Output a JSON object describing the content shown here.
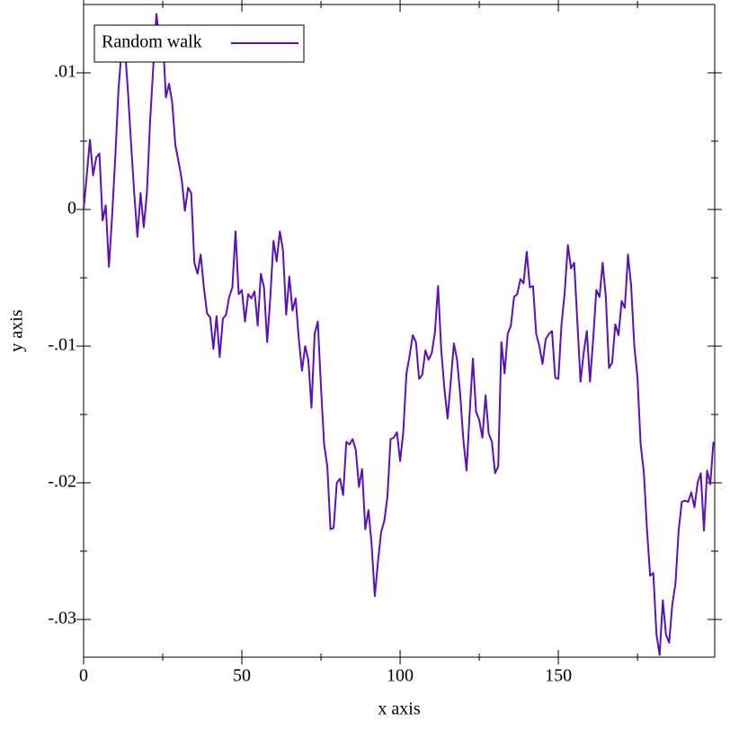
{
  "chart_data": {
    "type": "line",
    "xlabel": "x axis",
    "ylabel": "y axis",
    "x": [
      0,
      1,
      2,
      3,
      4,
      5,
      6,
      7,
      8,
      9,
      10,
      11,
      12,
      13,
      14,
      15,
      16,
      17,
      18,
      19,
      20,
      21,
      22,
      23,
      24,
      25,
      26,
      27,
      28,
      29,
      30,
      31,
      32,
      33,
      34,
      35,
      36,
      37,
      38,
      39,
      40,
      41,
      42,
      43,
      44,
      45,
      46,
      47,
      48,
      49,
      50,
      51,
      52,
      53,
      54,
      55,
      56,
      57,
      58,
      59,
      60,
      61,
      62,
      63,
      64,
      65,
      66,
      67,
      68,
      69,
      70,
      71,
      72,
      73,
      74,
      75,
      76,
      77,
      78,
      79,
      80,
      81,
      82,
      83,
      84,
      85,
      86,
      87,
      88,
      89,
      90,
      91,
      92,
      93,
      94,
      95,
      96,
      97,
      98,
      99,
      100,
      101,
      102,
      103,
      104,
      105,
      106,
      107,
      108,
      109,
      110,
      111,
      112,
      113,
      114,
      115,
      116,
      117,
      118,
      119,
      120,
      121,
      122,
      123,
      124,
      125,
      126,
      127,
      128,
      129,
      130,
      131,
      132,
      133,
      134,
      135,
      136,
      137,
      138,
      139,
      140,
      141,
      142,
      143,
      144,
      145,
      146,
      147,
      148,
      149,
      150,
      151,
      152,
      153,
      154,
      155,
      156,
      157,
      158,
      159,
      160,
      161,
      162,
      163,
      164,
      165,
      166,
      167,
      168,
      169,
      170,
      171,
      172,
      173,
      174,
      175,
      176,
      177,
      178,
      179,
      180,
      181,
      182,
      183,
      184,
      185,
      186,
      187,
      188,
      189,
      190,
      191,
      192,
      193,
      194,
      195,
      196,
      197,
      198,
      199
    ],
    "series": [
      {
        "name": "Random walk",
        "color": "#5b10b8",
        "values": [
          0,
          0.0025,
          0.0051,
          0.0025,
          0.0038,
          0.0041,
          -0.0008,
          0.0003,
          -0.0042,
          -0.0005,
          0.0038,
          0.0087,
          0.0117,
          0.012,
          0.0087,
          0.0048,
          0.0012,
          -0.002,
          0.0012,
          -0.0013,
          0.0012,
          0.0064,
          0.0104,
          0.0143,
          0.0124,
          0.0128,
          0.0082,
          0.0092,
          0.0078,
          0.0047,
          0.0035,
          0.0022,
          -0.0001,
          0.0016,
          0.0012,
          -0.0039,
          -0.0047,
          -0.0033,
          -0.0057,
          -0.0076,
          -0.0079,
          -0.0102,
          -0.0078,
          -0.0108,
          -0.008,
          -0.0077,
          -0.0064,
          -0.0057,
          -0.0016,
          -0.0062,
          -0.0059,
          -0.0082,
          -0.0062,
          -0.0065,
          -0.006,
          -0.0085,
          -0.0047,
          -0.0057,
          -0.0097,
          -0.0064,
          -0.0023,
          -0.0038,
          -0.0016,
          -0.003,
          -0.0077,
          -0.0049,
          -0.0074,
          -0.0065,
          -0.0095,
          -0.0118,
          -0.01,
          -0.011,
          -0.0145,
          -0.0091,
          -0.0082,
          -0.013,
          -0.0172,
          -0.0188,
          -0.0234,
          -0.0233,
          -0.02,
          -0.0197,
          -0.0209,
          -0.017,
          -0.0172,
          -0.0168,
          -0.0176,
          -0.0203,
          -0.019,
          -0.0234,
          -0.022,
          -0.0245,
          -0.0283,
          -0.0258,
          -0.0236,
          -0.0228,
          -0.021,
          -0.0168,
          -0.0167,
          -0.0163,
          -0.0184,
          -0.0163,
          -0.012,
          -0.0107,
          -0.0092,
          -0.0097,
          -0.0124,
          -0.0121,
          -0.0103,
          -0.011,
          -0.0105,
          -0.009,
          -0.0056,
          -0.0103,
          -0.0131,
          -0.0153,
          -0.0126,
          -0.0098,
          -0.011,
          -0.0136,
          -0.0169,
          -0.0191,
          -0.0148,
          -0.0109,
          -0.0148,
          -0.0154,
          -0.0167,
          -0.0136,
          -0.0164,
          -0.017,
          -0.0193,
          -0.0188,
          -0.0097,
          -0.012,
          -0.0091,
          -0.0085,
          -0.0064,
          -0.0062,
          -0.0051,
          -0.0054,
          -0.0031,
          -0.0057,
          -0.0056,
          -0.0091,
          -0.01,
          -0.0113,
          -0.0095,
          -0.0091,
          -0.0089,
          -0.0123,
          -0.0124,
          -0.0084,
          -0.0061,
          -0.0026,
          -0.0043,
          -0.0039,
          -0.0082,
          -0.0126,
          -0.0105,
          -0.0089,
          -0.0126,
          -0.0095,
          -0.0059,
          -0.0064,
          -0.0039,
          -0.0064,
          -0.0116,
          -0.0112,
          -0.0084,
          -0.0092,
          -0.0067,
          -0.0072,
          -0.0033,
          -0.0056,
          -0.01,
          -0.0123,
          -0.0172,
          -0.0192,
          -0.0234,
          -0.0268,
          -0.0266,
          -0.0311,
          -0.0326,
          -0.0286,
          -0.0311,
          -0.0317,
          -0.0289,
          -0.0274,
          -0.0235,
          -0.0214,
          -0.0213,
          -0.0214,
          -0.0207,
          -0.0218,
          -0.02,
          -0.0193,
          -0.0235,
          -0.0191,
          -0.0201,
          -0.017
        ]
      }
    ],
    "xlim": [
      0,
      199.4
    ],
    "ylim": [
      -0.03276,
      0.015
    ],
    "xticks": [
      0,
      50,
      100,
      150
    ],
    "xminorticks": [
      25,
      75,
      125,
      175
    ],
    "yticks": [
      {
        "value": 0.01,
        "label": ".01"
      },
      0,
      {
        "value": -0.01,
        "label": "-.01"
      },
      {
        "value": -0.02,
        "label": "-.02"
      },
      {
        "value": -0.03,
        "label": "-.03"
      }
    ],
    "yminorticks": [
      0.005,
      -0.005,
      -0.015,
      -0.025
    ],
    "grid": false,
    "legend": "upper left"
  }
}
